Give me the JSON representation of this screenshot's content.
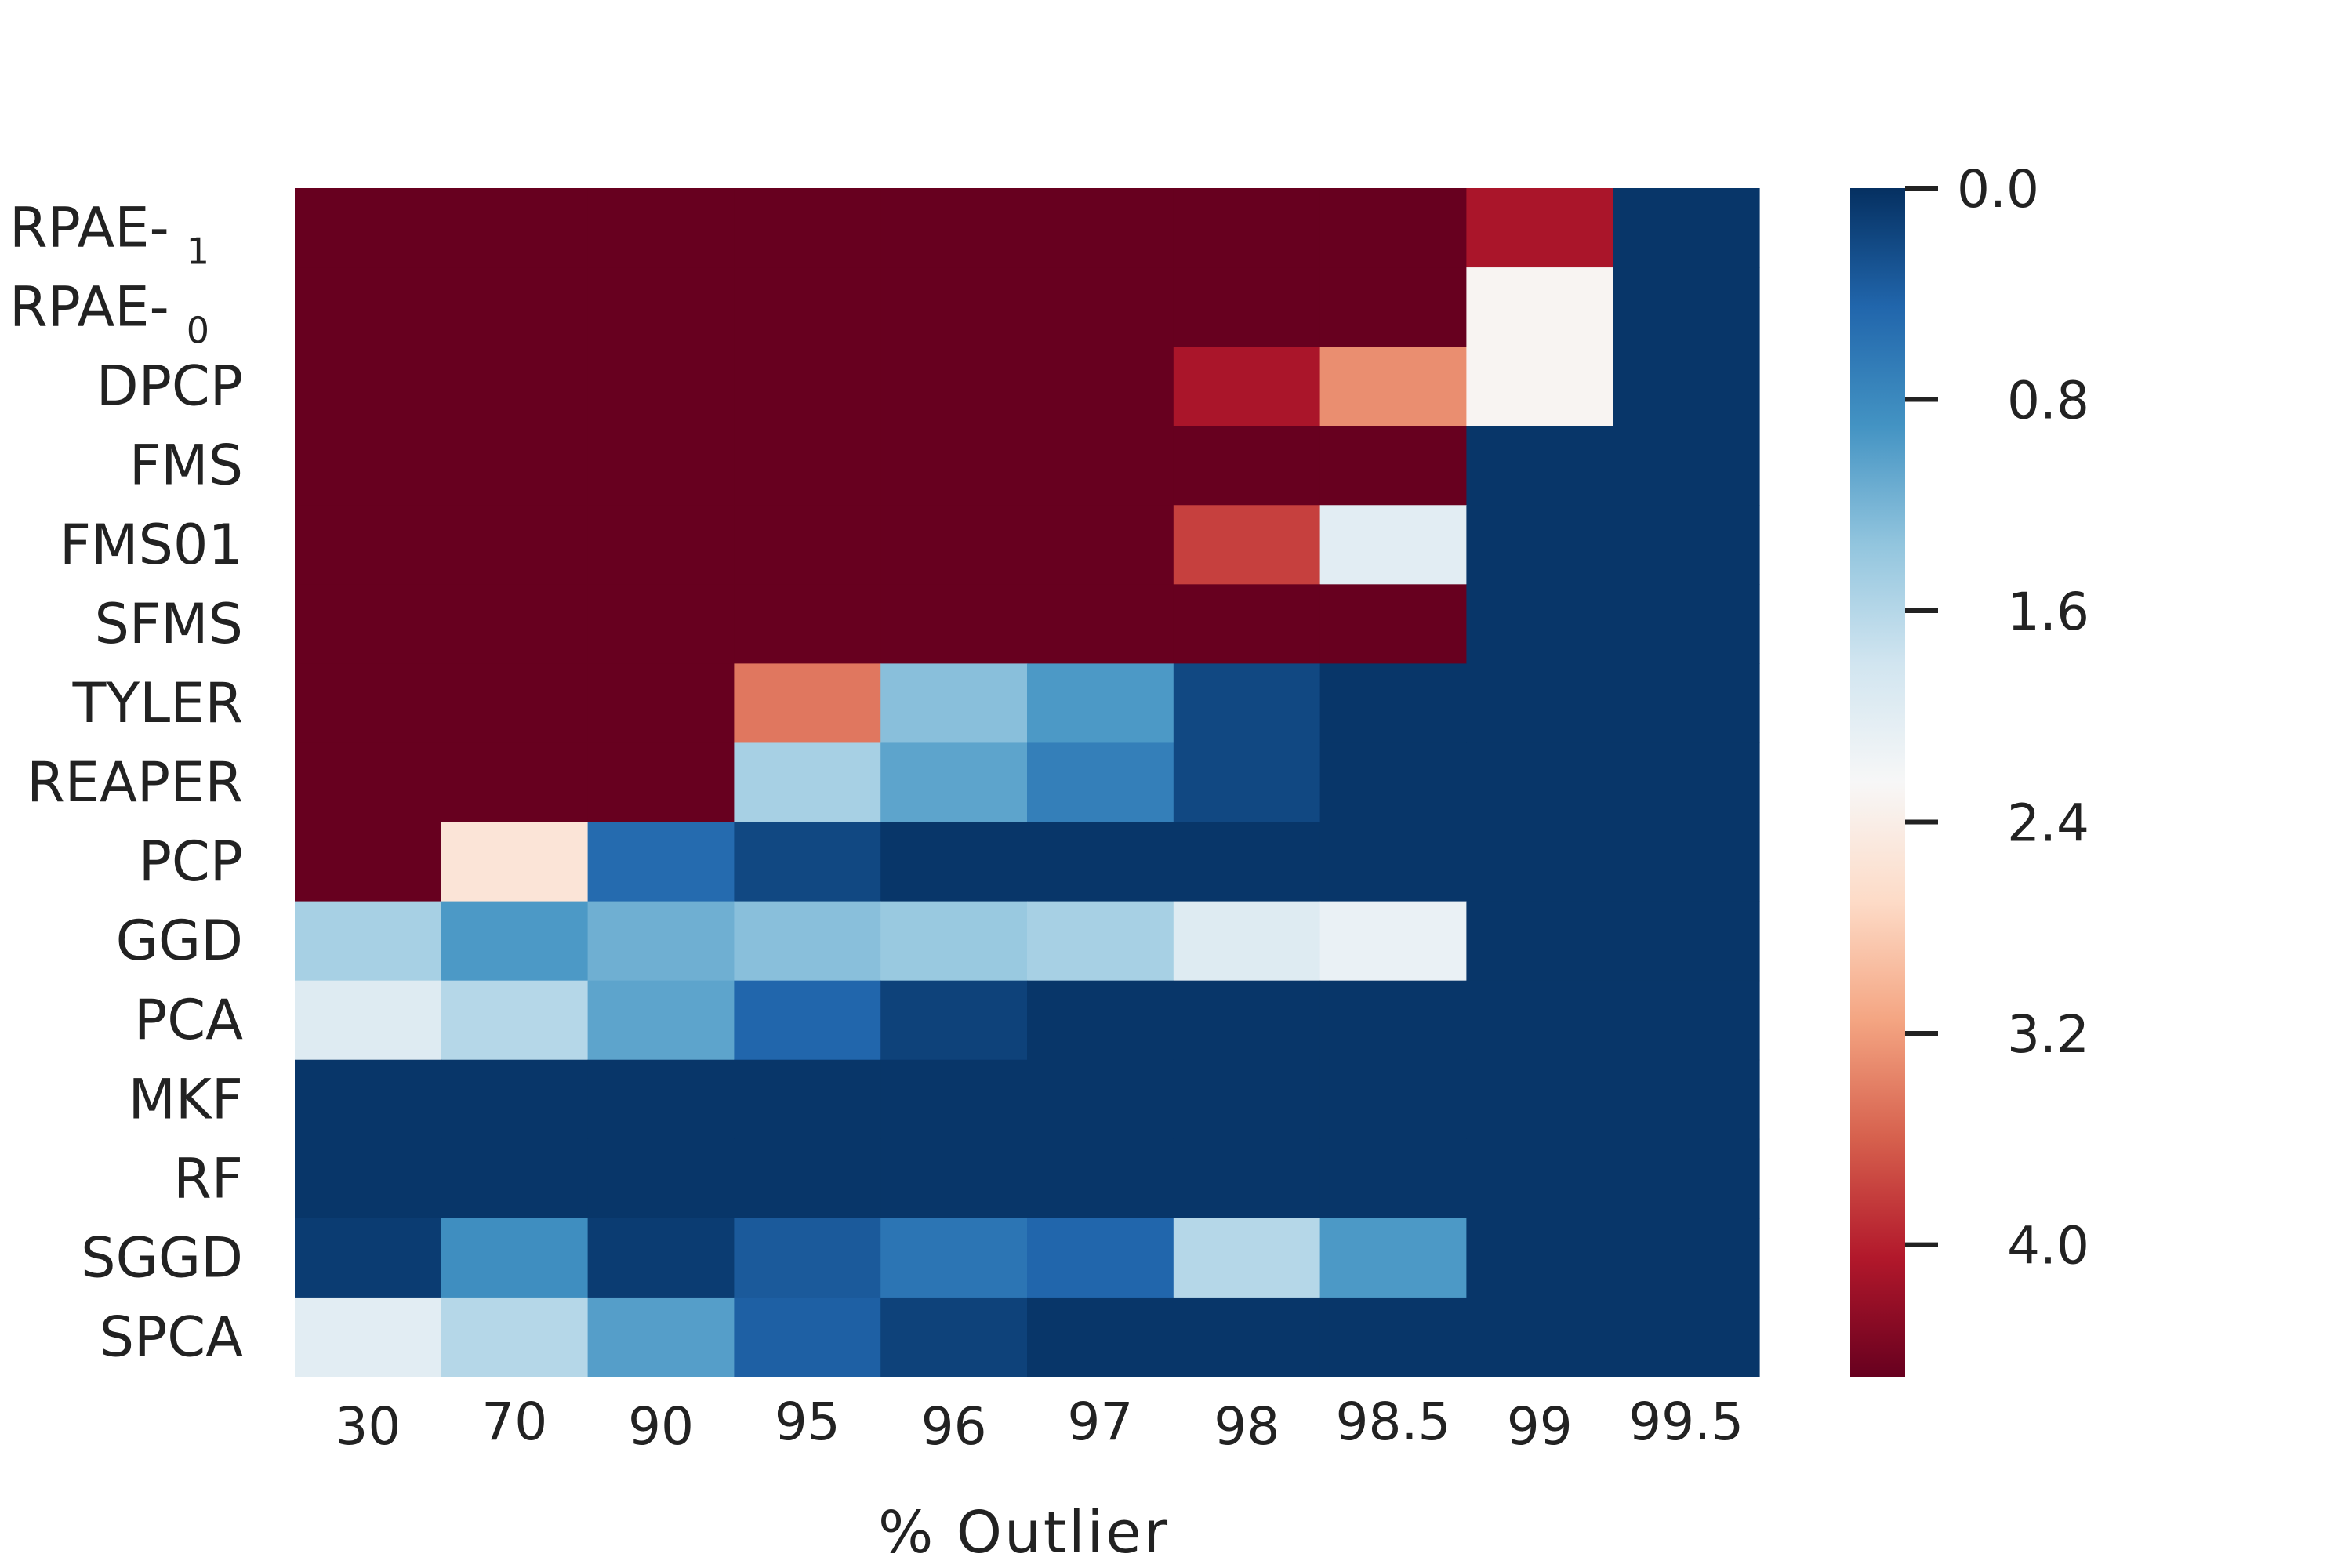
{
  "chart_data": {
    "type": "heatmap",
    "xlabel": "% Outlier",
    "x": [
      "30",
      "70",
      "90",
      "95",
      "96",
      "97",
      "98",
      "98.5",
      "99",
      "99.5"
    ],
    "rows": [
      {
        "label": "RPAE-",
        "sub": "1"
      },
      {
        "label": "RPAE-",
        "sub": "0"
      },
      {
        "label": "DPCP",
        "sub": ""
      },
      {
        "label": "FMS",
        "sub": ""
      },
      {
        "label": "FMS01",
        "sub": ""
      },
      {
        "label": "SFMS",
        "sub": ""
      },
      {
        "label": "TYLER",
        "sub": ""
      },
      {
        "label": "REAPER",
        "sub": ""
      },
      {
        "label": "PCP",
        "sub": ""
      },
      {
        "label": "GGD",
        "sub": ""
      },
      {
        "label": "PCA",
        "sub": ""
      },
      {
        "label": "MKF",
        "sub": ""
      },
      {
        "label": "RF",
        "sub": ""
      },
      {
        "label": "SGGD",
        "sub": ""
      },
      {
        "label": "SPCA",
        "sub": ""
      }
    ],
    "values": [
      [
        4.5,
        4.5,
        4.5,
        4.5,
        4.5,
        4.5,
        4.5,
        4.5,
        4.1,
        0.05
      ],
      [
        4.5,
        4.5,
        4.5,
        4.5,
        4.5,
        4.5,
        4.5,
        4.5,
        2.3,
        0.05
      ],
      [
        4.5,
        4.5,
        4.5,
        4.5,
        4.5,
        4.5,
        4.1,
        3.3,
        2.3,
        0.05
      ],
      [
        4.5,
        4.5,
        4.5,
        4.5,
        4.5,
        4.5,
        4.5,
        4.5,
        0.05,
        0.05
      ],
      [
        4.5,
        4.5,
        4.5,
        4.5,
        4.5,
        4.5,
        3.8,
        2.0,
        0.05,
        0.05
      ],
      [
        4.5,
        4.5,
        4.5,
        4.5,
        4.5,
        4.5,
        4.5,
        4.5,
        0.05,
        0.05
      ],
      [
        4.5,
        4.5,
        4.5,
        3.45,
        1.3,
        0.95,
        0.2,
        0.05,
        0.05,
        0.05
      ],
      [
        4.5,
        4.5,
        4.5,
        1.5,
        1.05,
        0.7,
        0.2,
        0.05,
        0.05,
        0.05
      ],
      [
        4.5,
        2.55,
        0.5,
        0.2,
        0.05,
        0.05,
        0.05,
        0.05,
        0.05,
        0.05
      ],
      [
        1.5,
        0.95,
        1.15,
        1.3,
        1.4,
        1.5,
        1.95,
        2.1,
        0.05,
        0.05
      ],
      [
        1.95,
        1.6,
        1.05,
        0.45,
        0.15,
        0.05,
        0.05,
        0.05,
        0.05,
        0.05
      ],
      [
        0.05,
        0.05,
        0.05,
        0.05,
        0.05,
        0.05,
        0.05,
        0.05,
        0.05,
        0.05
      ],
      [
        0.05,
        0.05,
        0.05,
        0.05,
        0.05,
        0.05,
        0.05,
        0.05,
        0.05,
        0.05
      ],
      [
        0.1,
        0.85,
        0.1,
        0.35,
        0.6,
        0.45,
        1.6,
        0.95,
        0.05,
        0.05
      ],
      [
        2.0,
        1.6,
        1.0,
        0.4,
        0.15,
        0.05,
        0.05,
        0.05,
        0.05,
        0.05
      ]
    ],
    "vmin": 0.0,
    "vmax": 4.5,
    "colorbar": {
      "ticks": [
        0.0,
        0.8,
        1.6,
        2.4,
        3.2,
        4.0
      ],
      "tick_labels": [
        "0.0",
        "0.8",
        "1.6",
        "2.4",
        "3.2",
        "4.0"
      ],
      "colormap": "reversed RdBu (0 = dark blue, max = dark red)"
    },
    "colormap_stops": [
      "#053061",
      "#2166ac",
      "#4393c3",
      "#92c5de",
      "#d1e5f0",
      "#f7f7f7",
      "#fddbc7",
      "#f4a582",
      "#d6604d",
      "#b2182b",
      "#67001f"
    ]
  }
}
